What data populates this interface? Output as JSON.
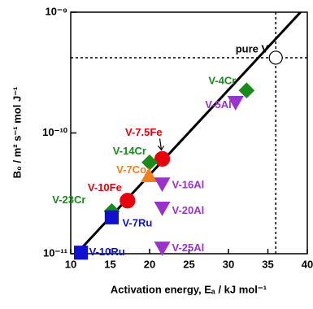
{
  "chart_data": {
    "type": "scatter",
    "xlabel": "Activation energy, Eₐ / kJ mol⁻¹",
    "ylabel": "B₀ / m² s⁻¹ mol J⁻¹",
    "xlim": [
      10,
      40
    ],
    "xticks": [
      10,
      15,
      20,
      25,
      30,
      35,
      40
    ],
    "ylim": [
      1e-11,
      1e-09
    ],
    "log_y": true,
    "yticks": [
      {
        "value": 1e-11,
        "label": "10⁻¹¹"
      },
      {
        "value": 1e-10,
        "label": "10⁻¹⁰"
      },
      {
        "value": 1e-09,
        "label": "10⁻⁹"
      }
    ],
    "fit_line": {
      "x": [
        10,
        40
      ],
      "y": [
        8.9e-12,
        1.15e-09
      ]
    },
    "series": [
      {
        "name": "pure V",
        "color": "#ffffff",
        "marker": "circle",
        "x": [
          36
        ],
        "values": [
          4.2e-10
        ]
      },
      {
        "name": "V-4Cr",
        "color": "#1a8a1a",
        "marker": "diamond",
        "x": [
          32.3
        ],
        "values": [
          2.25e-10
        ]
      },
      {
        "name": "V-5Al",
        "color": "#9933cc",
        "marker": "triangle-down",
        "x": [
          30.9
        ],
        "values": [
          1.8e-10
        ]
      },
      {
        "name": "V-7.5Fe",
        "color": "#e8000b",
        "marker": "circle",
        "x": [
          21.6
        ],
        "values": [
          6.1e-11
        ]
      },
      {
        "name": "V-14Cr",
        "color": "#1a8a1a",
        "marker": "diamond",
        "x": [
          20.0
        ],
        "values": [
          5.7e-11
        ]
      },
      {
        "name": "V-7Co",
        "color": "#f07f20",
        "marker": "triangle-up",
        "x": [
          19.9
        ],
        "values": [
          4.4e-11
        ]
      },
      {
        "name": "V-16Al",
        "color": "#9933cc",
        "marker": "triangle-down",
        "x": [
          21.6
        ],
        "values": [
          3.8e-11
        ]
      },
      {
        "name": "V-10Fe",
        "color": "#e8000b",
        "marker": "circle",
        "x": [
          17.2
        ],
        "values": [
          2.75e-11
        ]
      },
      {
        "name": "V-23Cr",
        "color": "#1a8a1a",
        "marker": "diamond",
        "x": [
          15.2
        ],
        "values": [
          2.25e-11
        ]
      },
      {
        "name": "V-7Ru",
        "color": "#1010d0",
        "marker": "square",
        "x": [
          15.2
        ],
        "values": [
          2e-11
        ]
      },
      {
        "name": "V-20Al",
        "color": "#9933cc",
        "marker": "triangle-down",
        "x": [
          21.6
        ],
        "values": [
          2.4e-11
        ]
      },
      {
        "name": "V-25Al",
        "color": "#9933cc",
        "marker": "triangle-down",
        "x": [
          21.6
        ],
        "values": [
          1.12e-11
        ]
      },
      {
        "name": "V-10Ru",
        "color": "#1010d0",
        "marker": "square",
        "x": [
          11.3
        ],
        "values": [
          1.02e-11
        ]
      }
    ]
  }
}
